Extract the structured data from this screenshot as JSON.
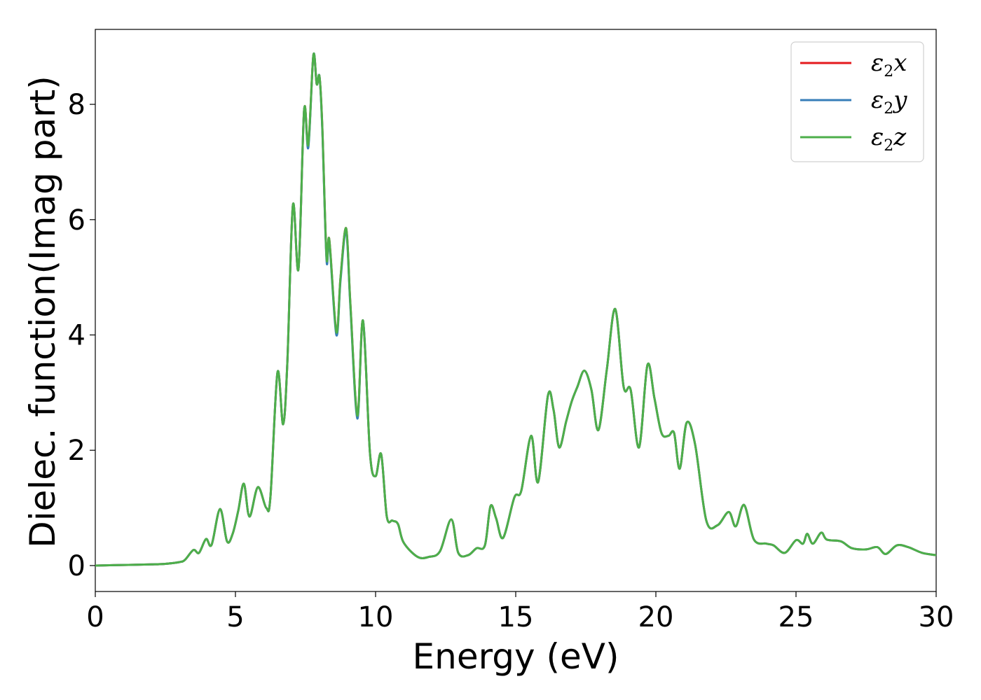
{
  "chart_data": {
    "type": "line",
    "title": "",
    "xlabel": "Energy (eV)",
    "ylabel": "Dielec. function(Imag part)",
    "xlim": [
      0,
      30
    ],
    "ylim": [
      -0.45,
      9.3
    ],
    "xticks": [
      0,
      5,
      10,
      15,
      20,
      25,
      30
    ],
    "yticks": [
      0,
      2,
      4,
      6,
      8
    ],
    "grid": false,
    "legend_position": "top-right",
    "series": [
      {
        "name": "ε₂x",
        "legend_base": "ε",
        "legend_sub": "2",
        "legend_suffix": "x",
        "color": "#e41a1c",
        "offset": 0
      },
      {
        "name": "ε₂y",
        "legend_base": "ε",
        "legend_sub": "2",
        "legend_suffix": "y",
        "color": "#377eb8",
        "offset": -0.05
      },
      {
        "name": "ε₂z",
        "legend_base": "ε",
        "legend_sub": "2",
        "legend_suffix": "z",
        "color": "#4daf4a",
        "offset": 0
      }
    ],
    "points": [
      [
        0.0,
        0.0
      ],
      [
        1.0,
        0.01
      ],
      [
        2.0,
        0.02
      ],
      [
        2.5,
        0.03
      ],
      [
        3.0,
        0.06
      ],
      [
        3.2,
        0.1
      ],
      [
        3.5,
        0.27
      ],
      [
        3.7,
        0.22
      ],
      [
        3.95,
        0.46
      ],
      [
        4.15,
        0.36
      ],
      [
        4.45,
        0.98
      ],
      [
        4.7,
        0.42
      ],
      [
        4.9,
        0.55
      ],
      [
        5.1,
        0.95
      ],
      [
        5.3,
        1.42
      ],
      [
        5.5,
        0.85
      ],
      [
        5.8,
        1.36
      ],
      [
        6.1,
        1.0
      ],
      [
        6.25,
        1.2
      ],
      [
        6.5,
        3.35
      ],
      [
        6.7,
        2.45
      ],
      [
        6.85,
        3.5
      ],
      [
        7.05,
        6.25
      ],
      [
        7.25,
        5.15
      ],
      [
        7.45,
        7.9
      ],
      [
        7.6,
        7.3
      ],
      [
        7.78,
        8.85
      ],
      [
        7.9,
        8.35
      ],
      [
        8.0,
        8.48
      ],
      [
        8.1,
        7.6
      ],
      [
        8.25,
        5.35
      ],
      [
        8.35,
        5.65
      ],
      [
        8.6,
        4.05
      ],
      [
        8.75,
        5.0
      ],
      [
        8.95,
        5.85
      ],
      [
        9.1,
        4.55
      ],
      [
        9.35,
        2.6
      ],
      [
        9.55,
        4.25
      ],
      [
        9.8,
        1.95
      ],
      [
        10.0,
        1.55
      ],
      [
        10.2,
        1.93
      ],
      [
        10.4,
        0.85
      ],
      [
        10.6,
        0.78
      ],
      [
        10.8,
        0.72
      ],
      [
        11.0,
        0.4
      ],
      [
        11.5,
        0.15
      ],
      [
        11.9,
        0.15
      ],
      [
        12.3,
        0.25
      ],
      [
        12.7,
        0.8
      ],
      [
        12.95,
        0.22
      ],
      [
        13.3,
        0.18
      ],
      [
        13.6,
        0.3
      ],
      [
        13.9,
        0.35
      ],
      [
        14.1,
        1.03
      ],
      [
        14.3,
        0.82
      ],
      [
        14.55,
        0.48
      ],
      [
        14.95,
        1.18
      ],
      [
        15.2,
        1.3
      ],
      [
        15.55,
        2.25
      ],
      [
        15.8,
        1.45
      ],
      [
        16.15,
        2.95
      ],
      [
        16.35,
        2.7
      ],
      [
        16.55,
        2.05
      ],
      [
        16.8,
        2.5
      ],
      [
        17.0,
        2.85
      ],
      [
        17.2,
        3.1
      ],
      [
        17.45,
        3.38
      ],
      [
        17.7,
        3.05
      ],
      [
        17.95,
        2.35
      ],
      [
        18.25,
        3.4
      ],
      [
        18.55,
        4.45
      ],
      [
        18.85,
        3.1
      ],
      [
        19.1,
        3.05
      ],
      [
        19.4,
        2.05
      ],
      [
        19.7,
        3.48
      ],
      [
        19.95,
        2.9
      ],
      [
        20.2,
        2.3
      ],
      [
        20.45,
        2.25
      ],
      [
        20.65,
        2.3
      ],
      [
        20.85,
        1.68
      ],
      [
        21.1,
        2.48
      ],
      [
        21.4,
        2.1
      ],
      [
        21.8,
        0.78
      ],
      [
        22.2,
        0.7
      ],
      [
        22.6,
        0.93
      ],
      [
        22.85,
        0.68
      ],
      [
        23.15,
        1.05
      ],
      [
        23.5,
        0.45
      ],
      [
        23.95,
        0.38
      ],
      [
        24.2,
        0.35
      ],
      [
        24.6,
        0.22
      ],
      [
        25.0,
        0.44
      ],
      [
        25.25,
        0.38
      ],
      [
        25.4,
        0.55
      ],
      [
        25.6,
        0.38
      ],
      [
        25.9,
        0.57
      ],
      [
        26.1,
        0.45
      ],
      [
        26.6,
        0.42
      ],
      [
        27.0,
        0.3
      ],
      [
        27.5,
        0.28
      ],
      [
        27.9,
        0.32
      ],
      [
        28.2,
        0.2
      ],
      [
        28.6,
        0.35
      ],
      [
        29.0,
        0.32
      ],
      [
        29.5,
        0.22
      ],
      [
        30.0,
        0.18
      ]
    ]
  }
}
